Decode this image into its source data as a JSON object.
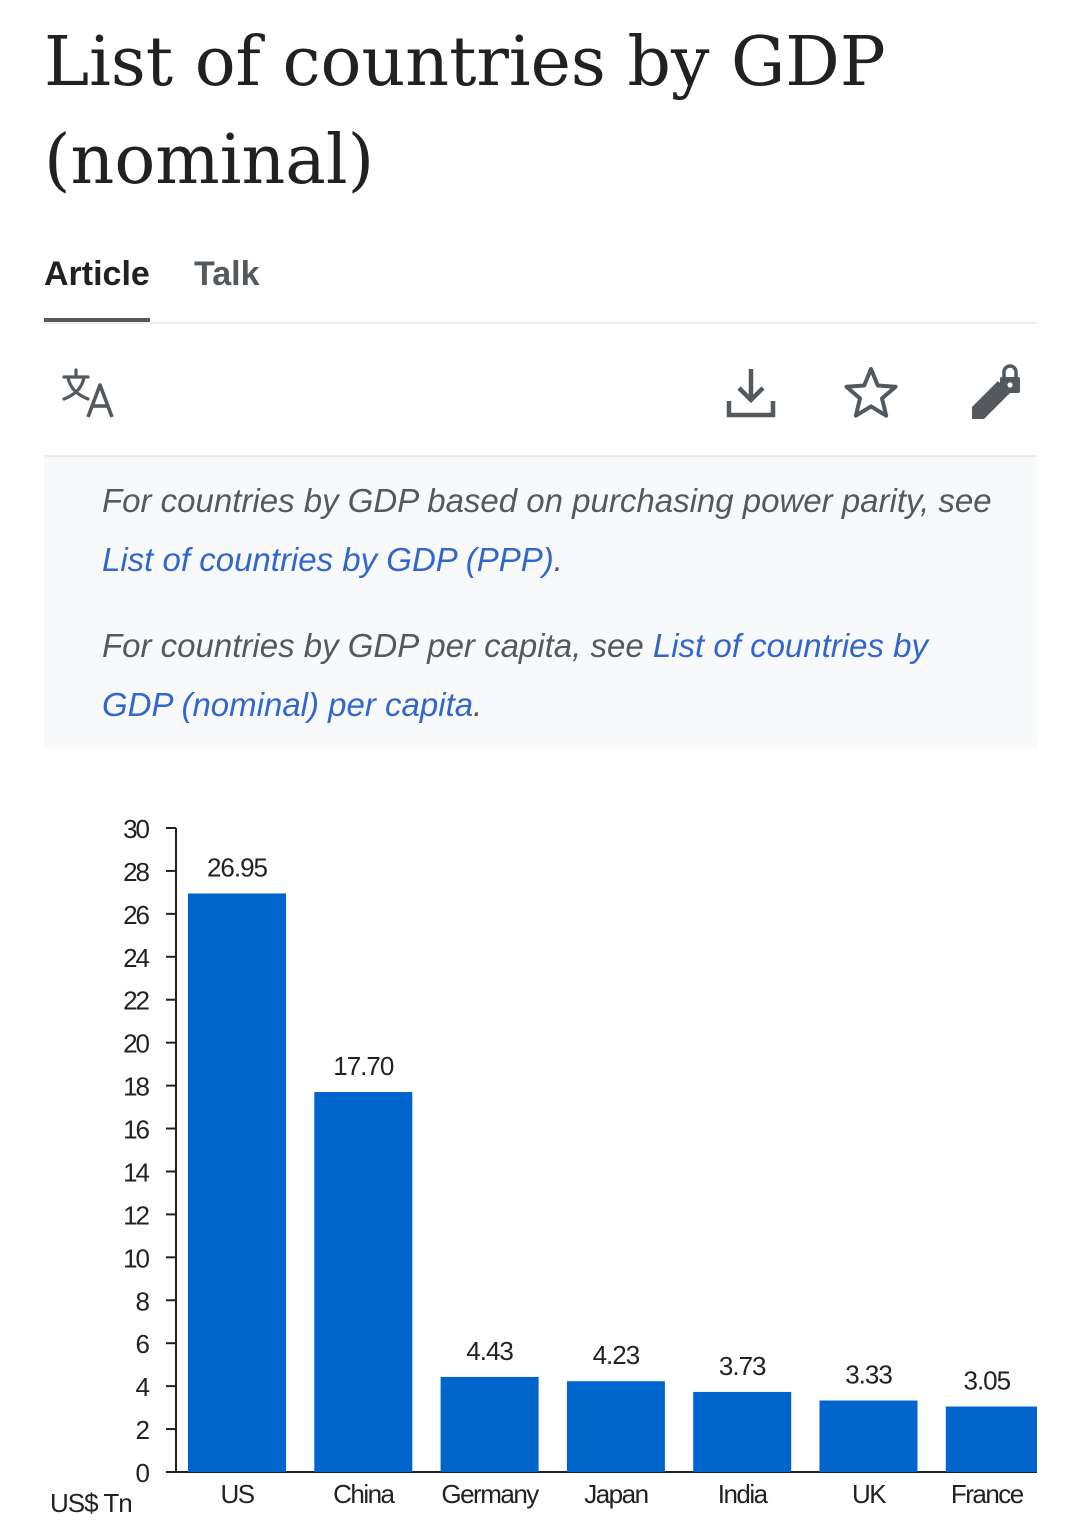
{
  "page": {
    "title": "List of countries by GDP (nominal)"
  },
  "tabs": [
    {
      "label": "Article",
      "active": true
    },
    {
      "label": "Talk",
      "active": false
    }
  ],
  "toolbar": {
    "icons": [
      "language-icon",
      "download-icon",
      "star-icon",
      "edit-lock-icon"
    ]
  },
  "hatnotes": [
    {
      "prefix": "For countries by GDP based on purchasing power parity, see ",
      "link": "List of countries by GDP (PPP)",
      "suffix": "."
    },
    {
      "prefix": "For countries by GDP per capita, see ",
      "link": "List of countries by GDP (nominal) per capita",
      "suffix": "."
    }
  ],
  "colors": {
    "link": "#3366cc",
    "bar": "#0064cd",
    "hatnote_bg": "#f8f9fa"
  },
  "chart_data": {
    "type": "bar",
    "categories": [
      "US",
      "China",
      "Germany",
      "Japan",
      "India",
      "UK",
      "France"
    ],
    "values": [
      26.95,
      17.7,
      4.43,
      4.23,
      3.73,
      3.33,
      3.05
    ],
    "value_labels": [
      "26.95",
      "17.70",
      "4.43",
      "4.23",
      "3.73",
      "3.33",
      "3.05"
    ],
    "ylabel": "US$ Tn",
    "ylim": [
      0,
      30
    ],
    "yticks": [
      0,
      2,
      4,
      6,
      8,
      10,
      12,
      14,
      16,
      18,
      20,
      22,
      24,
      26,
      28,
      30
    ],
    "grid": false
  }
}
